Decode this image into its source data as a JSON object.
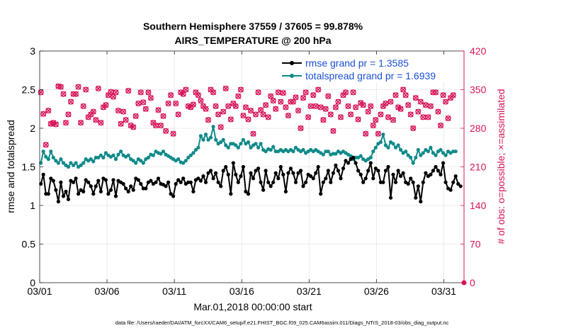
{
  "chart_data": {
    "type": "line",
    "title": "Southern Hemisphere 37559 / 37605 = 99.878%",
    "subtitle": "AIRS_TEMPERATURE @ 200 hPa",
    "xlabel": "Mar.01,2018 00:00:00 start",
    "ylabel": "rmse and totalspread",
    "y2label": "# of obs: o=possible; ×=assimilated",
    "xlim": [
      0,
      31.5
    ],
    "ylim": [
      0,
      3
    ],
    "y2lim": [
      0,
      420
    ],
    "x_ticks": [
      0,
      5,
      10,
      15,
      20,
      25,
      30
    ],
    "x_tick_labels": [
      "03/01",
      "03/06",
      "03/11",
      "03/16",
      "03/21",
      "03/26",
      "03/31"
    ],
    "y_ticks": [
      0,
      0.5,
      1,
      1.5,
      2,
      2.5,
      3
    ],
    "y_tick_labels": [
      "0",
      "0.5",
      "1",
      "1.5",
      "2",
      "2.5",
      "3"
    ],
    "y2_ticks": [
      0,
      70,
      140,
      210,
      280,
      350,
      420
    ],
    "y2_tick_labels": [
      "0",
      "70",
      "140",
      "210",
      "280",
      "350",
      "420"
    ],
    "grid": true,
    "legend_position": "top-right",
    "colors": {
      "rmse": "#000000",
      "spread": "#0f8a8a",
      "obs": "#d6145a",
      "legend_text": "#1a4fd6"
    },
    "series": [
      {
        "name": "rmse grand pr = 1.3585",
        "values": [
          1.28,
          1.4,
          1.15,
          1.15,
          1.35,
          1.32,
          1.2,
          1.05,
          1.3,
          1.12,
          1.18,
          1.08,
          1.32,
          1.3,
          1.35,
          1.15,
          1.2,
          1.18,
          1.33,
          1.3,
          1.25,
          1.15,
          1.25,
          1.32,
          1.18,
          1.35,
          1.33,
          1.15,
          1.2,
          1.33,
          1.12,
          1.32,
          1.3,
          1.28,
          1.22,
          1.18,
          1.25,
          1.2,
          1.35,
          1.33,
          1.28,
          1.22,
          1.22,
          1.3,
          1.32,
          1.28,
          1.3,
          1.35,
          1.28,
          1.27,
          1.25,
          1.3,
          1.15,
          1.12,
          1.28,
          1.33,
          1.3,
          1.35,
          1.28,
          1.3,
          1.3,
          1.18,
          1.33,
          1.35,
          1.32,
          1.38,
          1.3,
          1.42,
          1.45,
          1.35,
          1.42,
          1.3,
          1.25,
          1.45,
          1.5,
          1.4,
          1.15,
          1.55,
          1.4,
          1.3,
          1.38,
          1.5,
          1.18,
          1.15,
          1.42,
          1.35,
          1.45,
          1.48,
          1.3,
          1.2,
          1.45,
          1.3,
          1.25,
          1.3,
          1.42,
          1.35,
          1.5,
          1.4,
          1.18,
          1.42,
          1.48,
          1.42,
          1.3,
          1.42,
          1.45,
          1.25,
          1.3,
          1.4,
          1.38,
          1.35,
          1.42,
          1.5,
          1.15,
          1.3,
          1.35,
          1.45,
          1.3,
          1.42,
          1.52,
          1.45,
          1.35,
          1.48,
          1.58,
          1.55,
          1.6,
          1.62,
          1.55,
          1.45,
          1.4,
          1.3,
          1.35,
          1.45,
          1.55,
          1.35,
          1.48,
          1.45,
          1.3,
          1.3,
          1.45,
          1.5,
          1.1,
          1.4,
          1.3,
          1.45,
          1.38,
          1.42,
          1.3,
          1.28,
          1.35,
          1.3,
          1.1,
          1.25,
          1.05,
          1.3,
          1.42,
          1.38,
          1.4,
          1.45,
          1.5,
          1.45,
          1.4,
          1.55,
          1.3,
          1.22,
          1.2,
          1.3,
          1.38,
          1.28,
          1.25
        ],
        "color": "#000000",
        "marker": "o"
      },
      {
        "name": "totalspread grand pr = 1.6939",
        "values": [
          1.55,
          1.7,
          1.63,
          1.6,
          1.7,
          1.62,
          1.58,
          1.55,
          1.6,
          1.55,
          1.52,
          1.5,
          1.55,
          1.52,
          1.55,
          1.5,
          1.52,
          1.55,
          1.6,
          1.58,
          1.6,
          1.57,
          1.62,
          1.62,
          1.65,
          1.62,
          1.68,
          1.65,
          1.63,
          1.65,
          1.6,
          1.66,
          1.7,
          1.65,
          1.63,
          1.65,
          1.6,
          1.58,
          1.55,
          1.6,
          1.58,
          1.55,
          1.6,
          1.62,
          1.66,
          1.65,
          1.7,
          1.68,
          1.67,
          1.7,
          1.66,
          1.64,
          1.62,
          1.6,
          1.58,
          1.6,
          1.56,
          1.55,
          1.58,
          1.62,
          1.65,
          1.68,
          1.72,
          1.75,
          1.9,
          1.85,
          1.92,
          1.85,
          1.88,
          2.02,
          1.85,
          1.8,
          1.82,
          1.85,
          1.78,
          1.75,
          1.8,
          1.8,
          1.78,
          1.75,
          1.8,
          1.85,
          1.8,
          1.82,
          1.75,
          1.78,
          1.8,
          1.75,
          1.8,
          1.72,
          1.7,
          1.73,
          1.72,
          1.76,
          1.7,
          1.7,
          1.72,
          1.7,
          1.72,
          1.7,
          1.72,
          1.7,
          1.75,
          1.72,
          1.7,
          1.72,
          1.68,
          1.7,
          1.72,
          1.7,
          1.72,
          1.7,
          1.68,
          1.66,
          1.7,
          1.7,
          1.66,
          1.67,
          1.67,
          1.7,
          1.68,
          1.7,
          1.68,
          1.66,
          1.64,
          1.6,
          1.62,
          1.62,
          1.64,
          1.6,
          1.58,
          1.6,
          1.62,
          1.7,
          1.75,
          1.8,
          1.82,
          1.92,
          1.78,
          1.75,
          1.82,
          1.8,
          1.75,
          1.78,
          1.72,
          1.68,
          1.7,
          1.65,
          1.62,
          1.55,
          1.62,
          1.72,
          1.65,
          1.68,
          1.72,
          1.7,
          1.75,
          1.68,
          1.65,
          1.7,
          1.72,
          1.68,
          1.65,
          1.7,
          1.68,
          1.7,
          1.7
        ]
      },
      {
        "name": "obs possible",
        "values": [
          345,
          306,
          250,
          312,
          288,
          290,
          287,
          356,
          355,
          342,
          290,
          305,
          328,
          342,
          342,
          355,
          290,
          320,
          350,
          300,
          305,
          310,
          295,
          352,
          290,
          318,
          322,
          340,
          346,
          337,
          345,
          312,
          288,
          310,
          295,
          348,
          285,
          282,
          302,
          325,
          345,
          327,
          315,
          345,
          335,
          290,
          285,
          313,
          285,
          302,
          275,
          325,
          340,
          270,
          325,
          305,
          345,
          342,
          350,
          320,
          318,
          323,
          345,
          340,
          330,
          320,
          315,
          295,
          350,
          345,
          320,
          305,
          282,
          310,
          352,
          320,
          296,
          325,
          320,
          338,
          350,
          303,
          318,
          296,
          312,
          270,
          305,
          345,
          313,
          305,
          322,
          300,
          338,
          330,
          315,
          345,
          328,
          344,
          318,
          303,
          328,
          328,
          336,
          312,
          280,
          335,
          345,
          300,
          320,
          340,
          320,
          350,
          318,
          295,
          315,
          338,
          305,
          275,
          318,
          328,
          300,
          340,
          345,
          320,
          305,
          345,
          318,
          296,
          326,
          322,
          270,
          310,
          320,
          285,
          295,
          270,
          305,
          320,
          325,
          300,
          328,
          295,
          340,
          318,
          315,
          350,
          340,
          322,
          305,
          280,
          335,
          310,
          328,
          300,
          322,
          300,
          320,
          345,
          345,
          310,
          285,
          340,
          328,
          298,
          335,
          340
        ]
      }
    ],
    "source_note": "data file: /Users/raeder/DAI/ATM_forcXX/CAM6_setup/f.e21.FHIST_BGC.f09_025.CAM6assim.011/Diags_NTrS_2018-03/obs_diag_output.nc"
  }
}
